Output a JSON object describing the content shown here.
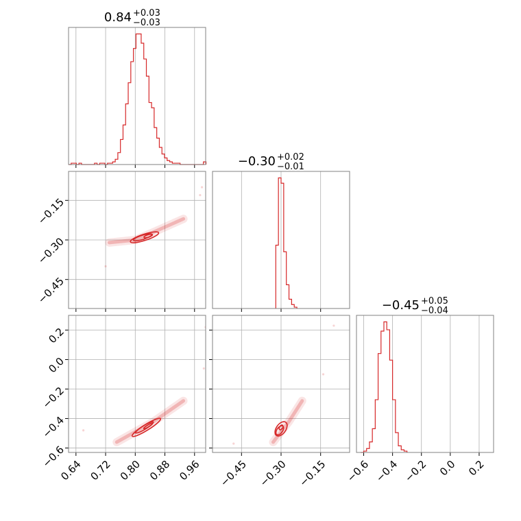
{
  "chart_data": [
    {
      "id": "p00",
      "type": "histogram",
      "title": "0.84",
      "title_sup": "+0.03",
      "title_sub": "−0.03",
      "xlim": [
        0.62,
        0.99
      ],
      "xticks": [
        0.64,
        0.72,
        0.8,
        0.88,
        0.96
      ],
      "xtick_labels": [],
      "hist": {
        "edges": [
          0.62,
          0.627,
          0.634,
          0.641,
          0.648,
          0.655,
          0.662,
          0.669,
          0.676,
          0.683,
          0.69,
          0.697,
          0.704,
          0.711,
          0.718,
          0.725,
          0.732,
          0.739,
          0.746,
          0.753,
          0.76,
          0.767,
          0.774,
          0.781,
          0.788,
          0.795,
          0.802,
          0.809,
          0.816,
          0.823,
          0.83,
          0.837,
          0.844,
          0.851,
          0.858,
          0.865,
          0.872,
          0.879,
          0.886,
          0.893,
          0.9,
          0.907,
          0.914,
          0.921,
          0.928,
          0.935,
          0.942,
          0.949,
          0.956,
          0.963,
          0.97,
          0.977,
          0.984,
          0.991
        ],
        "counts": [
          0,
          1,
          1,
          0,
          1,
          0,
          0,
          0,
          0,
          0,
          1,
          0,
          1,
          1,
          0,
          1,
          1,
          2,
          4,
          9,
          19,
          30,
          46,
          62,
          78,
          88,
          99,
          99,
          92,
          80,
          67,
          47,
          43,
          28,
          20,
          13,
          8,
          5,
          3,
          2,
          1,
          1,
          1,
          0,
          0,
          0,
          0,
          0,
          0,
          0,
          0,
          0,
          2
        ]
      }
    },
    {
      "id": "p11",
      "type": "histogram",
      "title": "−0.30",
      "title_sup": "+0.02",
      "title_sub": "−0.01",
      "xlim": [
        -0.56,
        -0.04
      ],
      "xticks": [
        -0.45,
        -0.3,
        -0.15
      ],
      "xtick_labels": [],
      "hist": {
        "edges": [
          -0.32,
          -0.31,
          -0.3,
          -0.29,
          -0.28,
          -0.27,
          -0.26,
          -0.25,
          -0.24
        ],
        "counts": [
          48,
          99,
          95,
          43,
          18,
          7,
          3,
          1
        ]
      }
    },
    {
      "id": "p22",
      "type": "histogram",
      "title": "−0.45",
      "title_sup": "+0.05",
      "title_sub": "−0.04",
      "xlim": [
        -0.65,
        0.3
      ],
      "xticks": [
        -0.6,
        -0.4,
        -0.2,
        0.0,
        0.2
      ],
      "xtick_labels": [
        "−0.6",
        "−0.4",
        "−0.2",
        "0.0",
        "0.2"
      ],
      "hist": {
        "edges": [
          -0.62,
          -0.6,
          -0.58,
          -0.56,
          -0.54,
          -0.52,
          -0.5,
          -0.48,
          -0.46,
          -0.44,
          -0.42,
          -0.4,
          -0.38,
          -0.36,
          -0.34,
          -0.32,
          -0.3
        ],
        "counts": [
          0,
          1,
          3,
          8,
          18,
          40,
          75,
          92,
          99,
          93,
          70,
          40,
          15,
          5,
          2,
          1
        ]
      }
    },
    {
      "id": "p10",
      "type": "scatter",
      "xlim": [
        0.62,
        0.99
      ],
      "ylim": [
        -0.56,
        -0.04
      ],
      "xticks": [
        0.64,
        0.72,
        0.8,
        0.88,
        0.96
      ],
      "yticks": [
        -0.15,
        -0.3,
        -0.45
      ],
      "ytick_labels": [
        "−0.15",
        "−0.30",
        "−0.45"
      ],
      "xtick_labels": [],
      "ridge": {
        "x": [
          0.73,
          0.8,
          0.85,
          0.93
        ],
        "y": [
          -0.31,
          -0.3,
          -0.27,
          -0.22
        ]
      },
      "outliers": [
        [
          0.72,
          -0.4
        ],
        [
          0.98,
          -0.1
        ],
        [
          0.975,
          -0.13
        ]
      ],
      "contours": [
        {
          "cx": 0.825,
          "cy": -0.29,
          "rx": 0.04,
          "ry": 0.012
        },
        {
          "cx": 0.82,
          "cy": -0.29,
          "rx": 0.026,
          "ry": 0.008
        },
        {
          "cx": 0.835,
          "cy": -0.285,
          "rx": 0.012,
          "ry": 0.005
        }
      ]
    },
    {
      "id": "p20",
      "type": "scatter",
      "xlim": [
        0.62,
        0.99
      ],
      "ylim": [
        -0.63,
        0.3
      ],
      "xticks": [
        0.64,
        0.72,
        0.8,
        0.88,
        0.96
      ],
      "xtick_labels": [
        "0.64",
        "0.72",
        "0.80",
        "0.88",
        "0.96"
      ],
      "yticks": [
        0.2,
        0.0,
        -0.2,
        -0.4,
        -0.6
      ],
      "ytick_labels": [
        "0.2",
        "0.0",
        "−0.2",
        "−0.4",
        "−0.6"
      ],
      "ridge": {
        "x": [
          0.75,
          0.8,
          0.85,
          0.93
        ],
        "y": [
          -0.56,
          -0.49,
          -0.42,
          -0.28
        ]
      },
      "outliers": [
        [
          0.66,
          -0.48
        ],
        [
          0.99,
          0.22
        ],
        [
          0.985,
          -0.06
        ]
      ],
      "contours": [
        {
          "cx": 0.83,
          "cy": -0.46,
          "rx": 0.045,
          "ry": 0.02
        },
        {
          "cx": 0.825,
          "cy": -0.46,
          "rx": 0.028,
          "ry": 0.013
        },
        {
          "cx": 0.835,
          "cy": -0.45,
          "rx": 0.014,
          "ry": 0.007
        }
      ]
    },
    {
      "id": "p21",
      "type": "scatter",
      "xlim": [
        -0.56,
        -0.04
      ],
      "ylim": [
        -0.63,
        0.3
      ],
      "xticks": [
        -0.45,
        -0.3,
        -0.15
      ],
      "xtick_labels": [
        "−0.45",
        "−0.30",
        "−0.15"
      ],
      "yticks": [
        0.2,
        0.0,
        -0.2,
        -0.4,
        -0.6
      ],
      "ytick_labels": [],
      "ridge": {
        "x": [
          -0.33,
          -0.3,
          -0.27,
          -0.22
        ],
        "y": [
          -0.56,
          -0.49,
          -0.42,
          -0.28
        ]
      },
      "outliers": [
        [
          -0.48,
          -0.57
        ],
        [
          -0.1,
          0.23
        ],
        [
          -0.14,
          -0.1
        ]
      ],
      "contours": [
        {
          "cx": -0.3,
          "cy": -0.47,
          "rx": 0.018,
          "ry": 0.055
        },
        {
          "cx": -0.305,
          "cy": -0.48,
          "rx": 0.011,
          "ry": 0.035
        },
        {
          "cx": -0.3,
          "cy": -0.46,
          "rx": 0.006,
          "ry": 0.018
        }
      ]
    }
  ],
  "colors": {
    "line": "#d62728",
    "grid": "#b0b0b0",
    "frame": "#808080"
  }
}
